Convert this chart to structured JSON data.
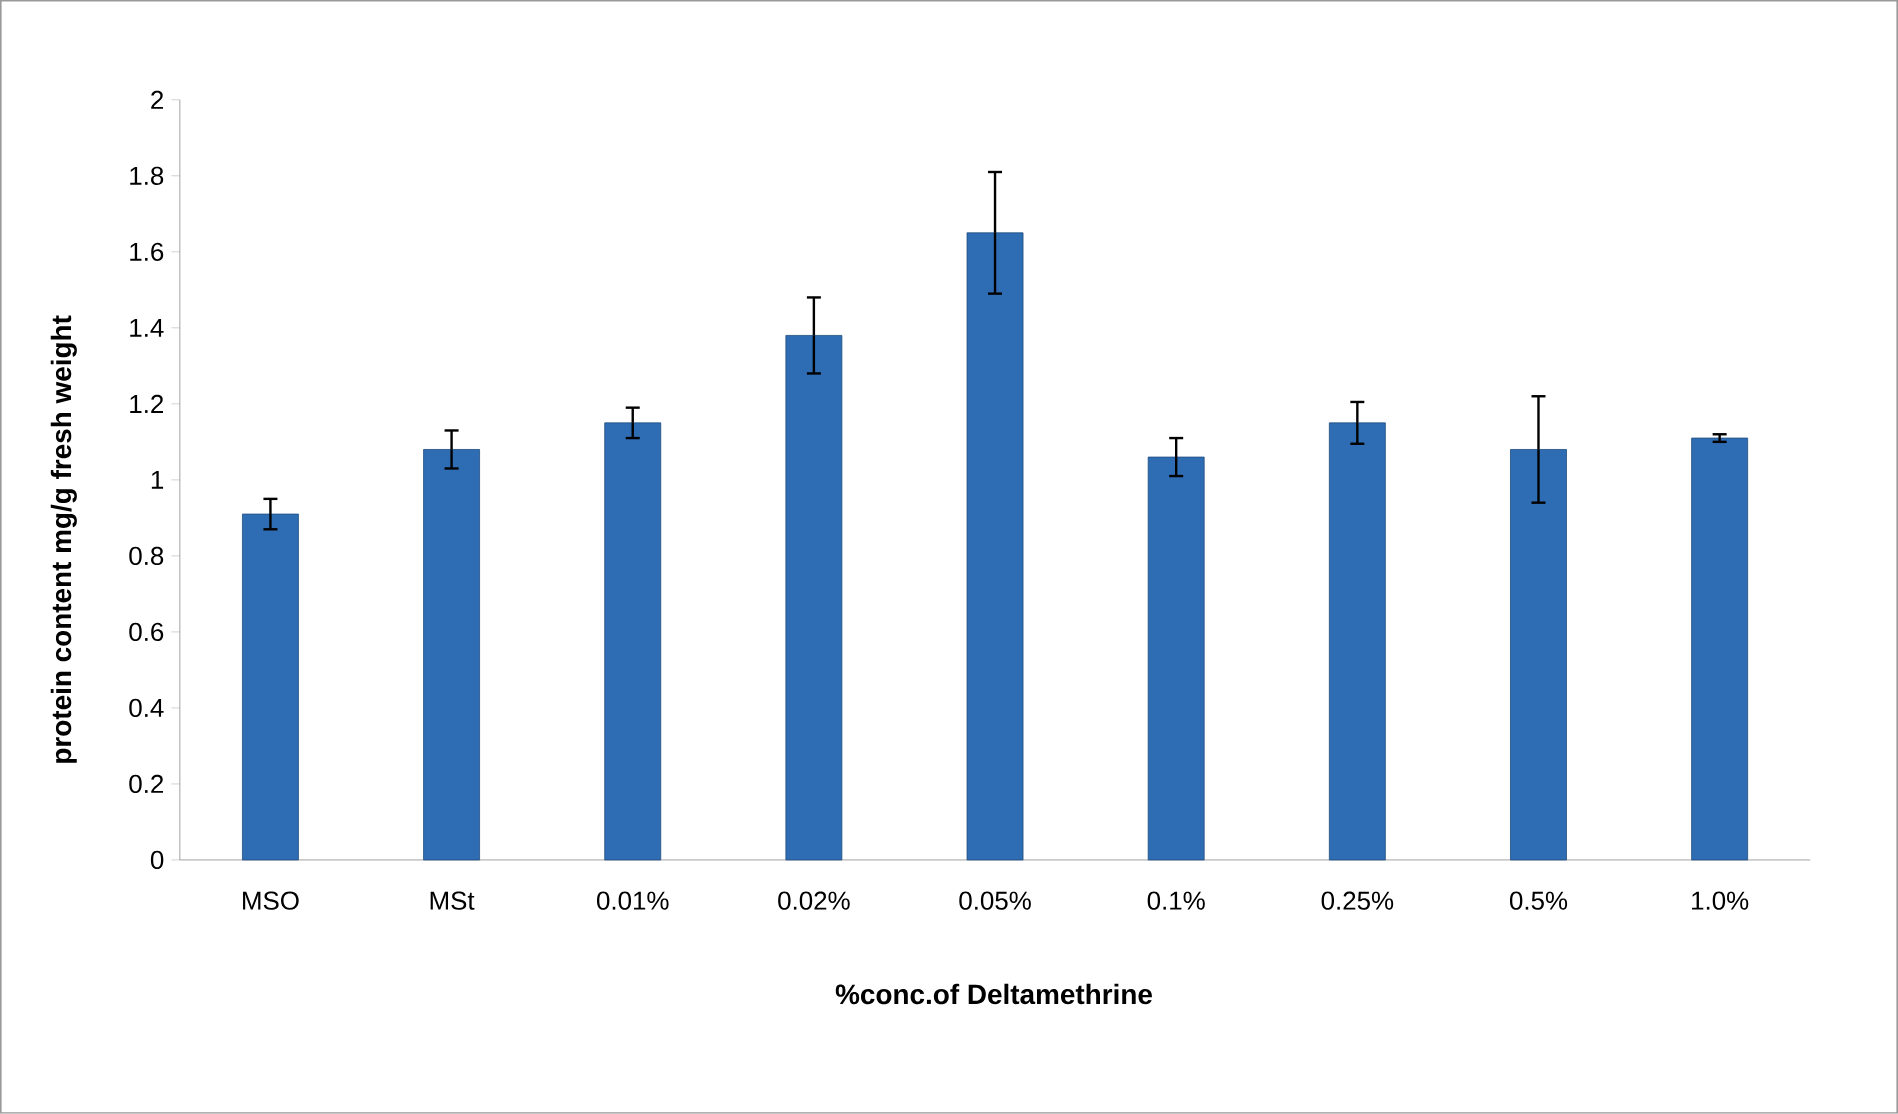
{
  "chart_data": {
    "type": "bar",
    "xlabel": "%conc.of Deltamethrine",
    "ylabel": "protein content mg/g fresh weight",
    "categories": [
      "MSO",
      "MSt",
      "0.01%",
      "0.02%",
      "0.05%",
      "0.1%",
      "0.25%",
      "0.5%",
      "1.0%"
    ],
    "values": [
      0.91,
      1.08,
      1.15,
      1.38,
      1.65,
      1.06,
      1.15,
      1.08,
      1.11
    ],
    "errors": [
      0.04,
      0.05,
      0.04,
      0.1,
      0.16,
      0.05,
      0.055,
      0.14,
      0.01
    ],
    "color": "#2e6db4",
    "ylim": [
      0,
      2
    ],
    "yticks": [
      0,
      0.2,
      0.4,
      0.6,
      0.8,
      1,
      1.2,
      1.4,
      1.6,
      1.8,
      2
    ],
    "grid": false
  }
}
